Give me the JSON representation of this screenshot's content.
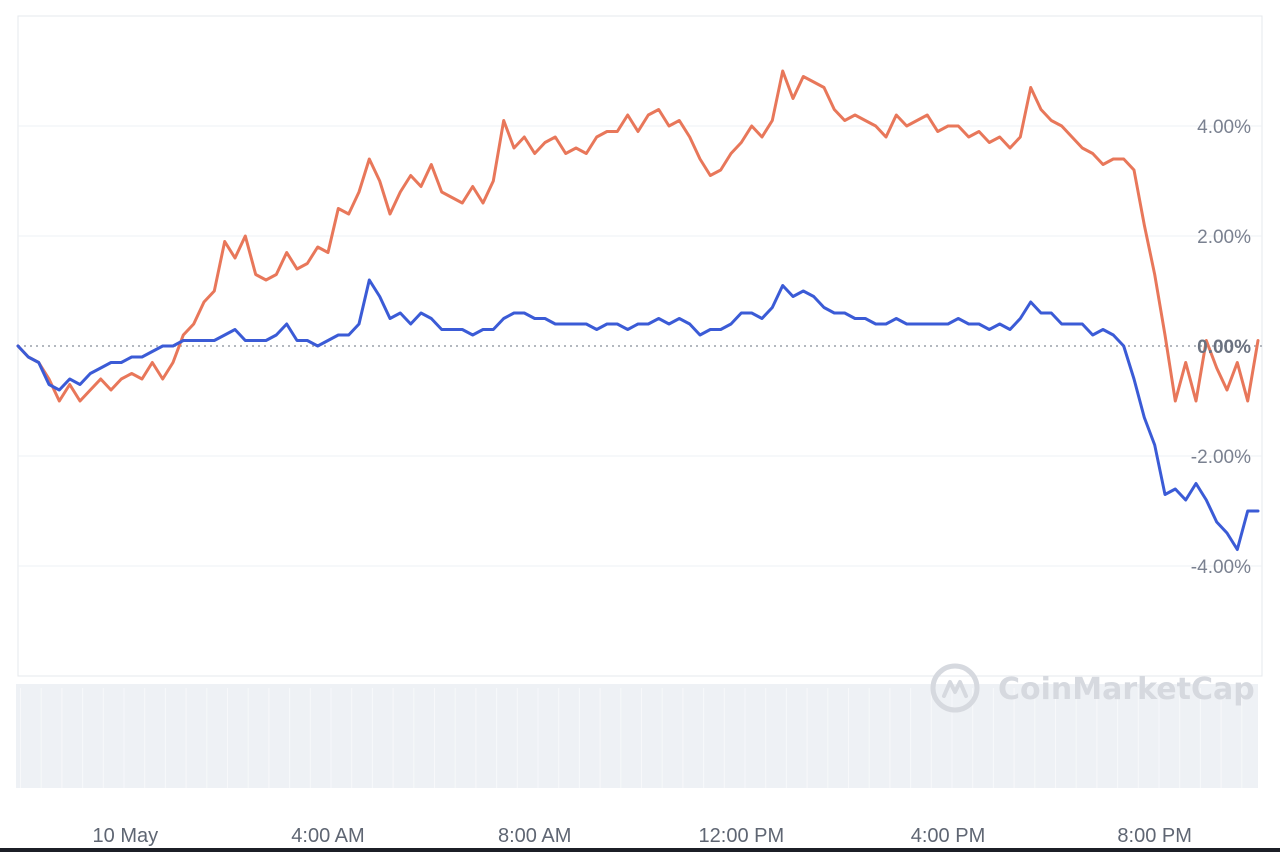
{
  "chart_data": {
    "type": "line",
    "title": "",
    "xlabel": "",
    "ylabel": "",
    "y_unit": "%",
    "ylim": [
      -6,
      6
    ],
    "x_range_hours": [
      0,
      24
    ],
    "x_ticks": [
      {
        "hour": 2,
        "label": "10 May"
      },
      {
        "hour": 6,
        "label": "4:00 AM"
      },
      {
        "hour": 10,
        "label": "8:00 AM"
      },
      {
        "hour": 14,
        "label": "12:00 PM"
      },
      {
        "hour": 18,
        "label": "4:00 PM"
      },
      {
        "hour": 22,
        "label": "8:00 PM"
      }
    ],
    "y_ticks": [
      {
        "value": 4,
        "label": "4.00%"
      },
      {
        "value": 2,
        "label": "2.00%"
      },
      {
        "value": 0,
        "label": "0.00%"
      },
      {
        "value": -2,
        "label": "-2.00%"
      },
      {
        "value": -4,
        "label": "-4.00%"
      }
    ],
    "grid": true,
    "legend": "none",
    "watermark": "CoinMarketCap",
    "series": [
      {
        "color": "#e8775a",
        "points": [
          [
            0,
            0
          ],
          [
            0.2,
            -0.2
          ],
          [
            0.4,
            -0.3
          ],
          [
            0.6,
            -0.6
          ],
          [
            0.8,
            -1.0
          ],
          [
            1.0,
            -0.7
          ],
          [
            1.2,
            -1.0
          ],
          [
            1.4,
            -0.8
          ],
          [
            1.6,
            -0.6
          ],
          [
            1.8,
            -0.8
          ],
          [
            2.0,
            -0.6
          ],
          [
            2.2,
            -0.5
          ],
          [
            2.4,
            -0.6
          ],
          [
            2.6,
            -0.3
          ],
          [
            2.8,
            -0.6
          ],
          [
            3.0,
            -0.3
          ],
          [
            3.2,
            0.2
          ],
          [
            3.4,
            0.4
          ],
          [
            3.6,
            0.8
          ],
          [
            3.8,
            1.0
          ],
          [
            4.0,
            1.9
          ],
          [
            4.2,
            1.6
          ],
          [
            4.4,
            2.0
          ],
          [
            4.6,
            1.3
          ],
          [
            4.8,
            1.2
          ],
          [
            5.0,
            1.3
          ],
          [
            5.2,
            1.7
          ],
          [
            5.4,
            1.4
          ],
          [
            5.6,
            1.5
          ],
          [
            5.8,
            1.8
          ],
          [
            6.0,
            1.7
          ],
          [
            6.2,
            2.5
          ],
          [
            6.4,
            2.4
          ],
          [
            6.6,
            2.8
          ],
          [
            6.8,
            3.4
          ],
          [
            7.0,
            3.0
          ],
          [
            7.2,
            2.4
          ],
          [
            7.4,
            2.8
          ],
          [
            7.6,
            3.1
          ],
          [
            7.8,
            2.9
          ],
          [
            8.0,
            3.3
          ],
          [
            8.2,
            2.8
          ],
          [
            8.4,
            2.7
          ],
          [
            8.6,
            2.6
          ],
          [
            8.8,
            2.9
          ],
          [
            9.0,
            2.6
          ],
          [
            9.2,
            3.0
          ],
          [
            9.4,
            4.1
          ],
          [
            9.6,
            3.6
          ],
          [
            9.8,
            3.8
          ],
          [
            10.0,
            3.5
          ],
          [
            10.2,
            3.7
          ],
          [
            10.4,
            3.8
          ],
          [
            10.6,
            3.5
          ],
          [
            10.8,
            3.6
          ],
          [
            11.0,
            3.5
          ],
          [
            11.2,
            3.8
          ],
          [
            11.4,
            3.9
          ],
          [
            11.6,
            3.9
          ],
          [
            11.8,
            4.2
          ],
          [
            12.0,
            3.9
          ],
          [
            12.2,
            4.2
          ],
          [
            12.4,
            4.3
          ],
          [
            12.6,
            4.0
          ],
          [
            12.8,
            4.1
          ],
          [
            13.0,
            3.8
          ],
          [
            13.2,
            3.4
          ],
          [
            13.4,
            3.1
          ],
          [
            13.6,
            3.2
          ],
          [
            13.8,
            3.5
          ],
          [
            14.0,
            3.7
          ],
          [
            14.2,
            4.0
          ],
          [
            14.4,
            3.8
          ],
          [
            14.6,
            4.1
          ],
          [
            14.8,
            5.0
          ],
          [
            15.0,
            4.5
          ],
          [
            15.2,
            4.9
          ],
          [
            15.4,
            4.8
          ],
          [
            15.6,
            4.7
          ],
          [
            15.8,
            4.3
          ],
          [
            16.0,
            4.1
          ],
          [
            16.2,
            4.2
          ],
          [
            16.4,
            4.1
          ],
          [
            16.6,
            4.0
          ],
          [
            16.8,
            3.8
          ],
          [
            17.0,
            4.2
          ],
          [
            17.2,
            4.0
          ],
          [
            17.4,
            4.1
          ],
          [
            17.6,
            4.2
          ],
          [
            17.8,
            3.9
          ],
          [
            18.0,
            4.0
          ],
          [
            18.2,
            4.0
          ],
          [
            18.4,
            3.8
          ],
          [
            18.6,
            3.9
          ],
          [
            18.8,
            3.7
          ],
          [
            19.0,
            3.8
          ],
          [
            19.2,
            3.6
          ],
          [
            19.4,
            3.8
          ],
          [
            19.6,
            4.7
          ],
          [
            19.8,
            4.3
          ],
          [
            20.0,
            4.1
          ],
          [
            20.2,
            4.0
          ],
          [
            20.4,
            3.8
          ],
          [
            20.6,
            3.6
          ],
          [
            20.8,
            3.5
          ],
          [
            21.0,
            3.3
          ],
          [
            21.2,
            3.4
          ],
          [
            21.4,
            3.4
          ],
          [
            21.6,
            3.2
          ],
          [
            21.8,
            2.2
          ],
          [
            22.0,
            1.3
          ],
          [
            22.2,
            0.2
          ],
          [
            22.4,
            -1.0
          ],
          [
            22.6,
            -0.3
          ],
          [
            22.8,
            -1.0
          ],
          [
            23.0,
            0.1
          ],
          [
            23.2,
            -0.4
          ],
          [
            23.4,
            -0.8
          ],
          [
            23.6,
            -0.3
          ],
          [
            23.8,
            -1.0
          ],
          [
            24.0,
            0.1
          ]
        ]
      },
      {
        "color": "#3b5bd6",
        "points": [
          [
            0,
            0
          ],
          [
            0.2,
            -0.2
          ],
          [
            0.4,
            -0.3
          ],
          [
            0.6,
            -0.7
          ],
          [
            0.8,
            -0.8
          ],
          [
            1.0,
            -0.6
          ],
          [
            1.2,
            -0.7
          ],
          [
            1.4,
            -0.5
          ],
          [
            1.6,
            -0.4
          ],
          [
            1.8,
            -0.3
          ],
          [
            2.0,
            -0.3
          ],
          [
            2.2,
            -0.2
          ],
          [
            2.4,
            -0.2
          ],
          [
            2.6,
            -0.1
          ],
          [
            2.8,
            0
          ],
          [
            3.0,
            0
          ],
          [
            3.2,
            0.1
          ],
          [
            3.4,
            0.1
          ],
          [
            3.6,
            0.1
          ],
          [
            3.8,
            0.1
          ],
          [
            4.0,
            0.2
          ],
          [
            4.2,
            0.3
          ],
          [
            4.4,
            0.1
          ],
          [
            4.6,
            0.1
          ],
          [
            4.8,
            0.1
          ],
          [
            5.0,
            0.2
          ],
          [
            5.2,
            0.4
          ],
          [
            5.4,
            0.1
          ],
          [
            5.6,
            0.1
          ],
          [
            5.8,
            0
          ],
          [
            6.0,
            0.1
          ],
          [
            6.2,
            0.2
          ],
          [
            6.4,
            0.2
          ],
          [
            6.6,
            0.4
          ],
          [
            6.8,
            1.2
          ],
          [
            7.0,
            0.9
          ],
          [
            7.2,
            0.5
          ],
          [
            7.4,
            0.6
          ],
          [
            7.6,
            0.4
          ],
          [
            7.8,
            0.6
          ],
          [
            8.0,
            0.5
          ],
          [
            8.2,
            0.3
          ],
          [
            8.4,
            0.3
          ],
          [
            8.6,
            0.3
          ],
          [
            8.8,
            0.2
          ],
          [
            9.0,
            0.3
          ],
          [
            9.2,
            0.3
          ],
          [
            9.4,
            0.5
          ],
          [
            9.6,
            0.6
          ],
          [
            9.8,
            0.6
          ],
          [
            10.0,
            0.5
          ],
          [
            10.2,
            0.5
          ],
          [
            10.4,
            0.4
          ],
          [
            10.6,
            0.4
          ],
          [
            10.8,
            0.4
          ],
          [
            11.0,
            0.4
          ],
          [
            11.2,
            0.3
          ],
          [
            11.4,
            0.4
          ],
          [
            11.6,
            0.4
          ],
          [
            11.8,
            0.3
          ],
          [
            12.0,
            0.4
          ],
          [
            12.2,
            0.4
          ],
          [
            12.4,
            0.5
          ],
          [
            12.6,
            0.4
          ],
          [
            12.8,
            0.5
          ],
          [
            13.0,
            0.4
          ],
          [
            13.2,
            0.2
          ],
          [
            13.4,
            0.3
          ],
          [
            13.6,
            0.3
          ],
          [
            13.8,
            0.4
          ],
          [
            14.0,
            0.6
          ],
          [
            14.2,
            0.6
          ],
          [
            14.4,
            0.5
          ],
          [
            14.6,
            0.7
          ],
          [
            14.8,
            1.1
          ],
          [
            15.0,
            0.9
          ],
          [
            15.2,
            1.0
          ],
          [
            15.4,
            0.9
          ],
          [
            15.6,
            0.7
          ],
          [
            15.8,
            0.6
          ],
          [
            16.0,
            0.6
          ],
          [
            16.2,
            0.5
          ],
          [
            16.4,
            0.5
          ],
          [
            16.6,
            0.4
          ],
          [
            16.8,
            0.4
          ],
          [
            17.0,
            0.5
          ],
          [
            17.2,
            0.4
          ],
          [
            17.4,
            0.4
          ],
          [
            17.6,
            0.4
          ],
          [
            17.8,
            0.4
          ],
          [
            18.0,
            0.4
          ],
          [
            18.2,
            0.5
          ],
          [
            18.4,
            0.4
          ],
          [
            18.6,
            0.4
          ],
          [
            18.8,
            0.3
          ],
          [
            19.0,
            0.4
          ],
          [
            19.2,
            0.3
          ],
          [
            19.4,
            0.5
          ],
          [
            19.6,
            0.8
          ],
          [
            19.8,
            0.6
          ],
          [
            20.0,
            0.6
          ],
          [
            20.2,
            0.4
          ],
          [
            20.4,
            0.4
          ],
          [
            20.6,
            0.4
          ],
          [
            20.8,
            0.2
          ],
          [
            21.0,
            0.3
          ],
          [
            21.2,
            0.2
          ],
          [
            21.4,
            0
          ],
          [
            21.6,
            -0.6
          ],
          [
            21.8,
            -1.3
          ],
          [
            22.0,
            -1.8
          ],
          [
            22.2,
            -2.7
          ],
          [
            22.4,
            -2.6
          ],
          [
            22.6,
            -2.8
          ],
          [
            22.8,
            -2.5
          ],
          [
            23.0,
            -2.8
          ],
          [
            23.2,
            -3.2
          ],
          [
            23.4,
            -3.4
          ],
          [
            23.6,
            -3.7
          ],
          [
            23.8,
            -3.0
          ],
          [
            24.0,
            -3.0
          ]
        ]
      }
    ]
  }
}
